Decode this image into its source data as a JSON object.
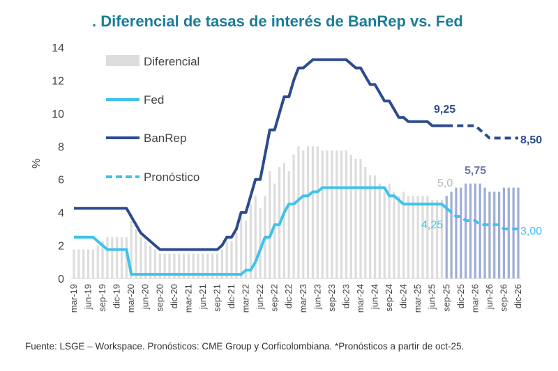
{
  "chart_data": {
    "type": "line",
    "title": ". Diferencial de tasas de interés de BanRep vs. Fed",
    "ylabel": "%",
    "ylim": [
      0,
      14
    ],
    "yticks": [
      "0",
      "2",
      "4",
      "6",
      "8",
      "10",
      "12",
      "14"
    ],
    "x_start": "mar-19",
    "x_end": "dic-26",
    "x_frequency": "monthly",
    "forecast_start_index": 79,
    "xtick_labels": [
      "mar-19",
      "jun-19",
      "sep-19",
      "dic-19",
      "mar-20",
      "jun-20",
      "sep-20",
      "dic-20",
      "mar-21",
      "jun-21",
      "sep-21",
      "dic-21",
      "mar-22",
      "jun-22",
      "sep-22",
      "dic-22",
      "mar-23",
      "jun-23",
      "sep-23",
      "dic-23",
      "mar-24",
      "jun-24",
      "sep-24",
      "dic-24",
      "mar-25",
      "jun-25",
      "sep-25",
      "dic-25",
      "mar-26",
      "jun-26",
      "sep-26",
      "dic-26"
    ],
    "legend": [
      "Diferencial",
      "Fed",
      "BanRep",
      "Pronóstico"
    ],
    "series": [
      {
        "name": "Fed",
        "color": "#3ec3ea",
        "values": [
          2.5,
          2.5,
          2.5,
          2.5,
          2.5,
          2.25,
          2.0,
          1.75,
          1.75,
          1.75,
          1.75,
          1.75,
          0.25,
          0.25,
          0.25,
          0.25,
          0.25,
          0.25,
          0.25,
          0.25,
          0.25,
          0.25,
          0.25,
          0.25,
          0.25,
          0.25,
          0.25,
          0.25,
          0.25,
          0.25,
          0.25,
          0.25,
          0.25,
          0.25,
          0.25,
          0.25,
          0.5,
          0.5,
          1.0,
          1.75,
          2.5,
          2.5,
          3.25,
          3.25,
          4.0,
          4.5,
          4.5,
          4.75,
          5.0,
          5.0,
          5.25,
          5.25,
          5.5,
          5.5,
          5.5,
          5.5,
          5.5,
          5.5,
          5.5,
          5.5,
          5.5,
          5.5,
          5.5,
          5.5,
          5.5,
          5.5,
          5.0,
          5.0,
          4.75,
          4.5,
          4.5,
          4.5,
          4.5,
          4.5,
          4.5,
          4.5,
          4.5,
          4.5,
          4.25,
          4.0,
          3.75,
          3.75,
          3.5,
          3.5,
          3.5,
          3.25,
          3.25,
          3.25,
          3.25,
          3.25,
          3.0,
          3.0,
          3.0,
          3.0
        ]
      },
      {
        "name": "BanRep",
        "color": "#2c4b8e",
        "values": [
          4.25,
          4.25,
          4.25,
          4.25,
          4.25,
          4.25,
          4.25,
          4.25,
          4.25,
          4.25,
          4.25,
          4.25,
          3.75,
          3.25,
          2.75,
          2.5,
          2.25,
          2.0,
          1.75,
          1.75,
          1.75,
          1.75,
          1.75,
          1.75,
          1.75,
          1.75,
          1.75,
          1.75,
          1.75,
          1.75,
          1.75,
          2.0,
          2.5,
          2.5,
          3.0,
          4.0,
          4.0,
          5.0,
          6.0,
          6.0,
          7.5,
          9.0,
          9.0,
          10.0,
          11.0,
          11.0,
          12.0,
          12.75,
          12.75,
          13.0,
          13.25,
          13.25,
          13.25,
          13.25,
          13.25,
          13.25,
          13.25,
          13.25,
          13.0,
          12.75,
          12.75,
          12.25,
          11.75,
          11.75,
          11.25,
          10.75,
          10.75,
          10.25,
          9.75,
          9.75,
          9.5,
          9.5,
          9.5,
          9.5,
          9.5,
          9.25,
          9.25,
          9.25,
          9.25,
          9.25,
          9.25,
          9.25,
          9.25,
          9.25,
          9.25,
          9.0,
          8.75,
          8.5,
          8.5,
          8.5,
          8.5,
          8.5,
          8.5,
          8.5
        ]
      }
    ],
    "differential_color": "#dddddd",
    "differential_forecast_color": "#9eacd8",
    "annotations": [
      {
        "text": "9,25",
        "series": "BanRep",
        "color": "#2c4b8e"
      },
      {
        "text": "8,50",
        "series": "BanRep",
        "color": "#2c4b8e"
      },
      {
        "text": "5,0",
        "series": "Diferencial",
        "color": "#b8b8b8"
      },
      {
        "text": "5,75",
        "series": "Diferencial",
        "color": "#6b74a8"
      },
      {
        "text": "4,25",
        "series": "Fed",
        "color": "#3ec3ea"
      },
      {
        "text": "3,00",
        "series": "Fed",
        "color": "#3ec3ea"
      }
    ]
  },
  "footer": "Fuente: LSGE – Workspace. Pronósticos: CME Group y Corficolombiana. *Pronósticos a partir de oct-25."
}
